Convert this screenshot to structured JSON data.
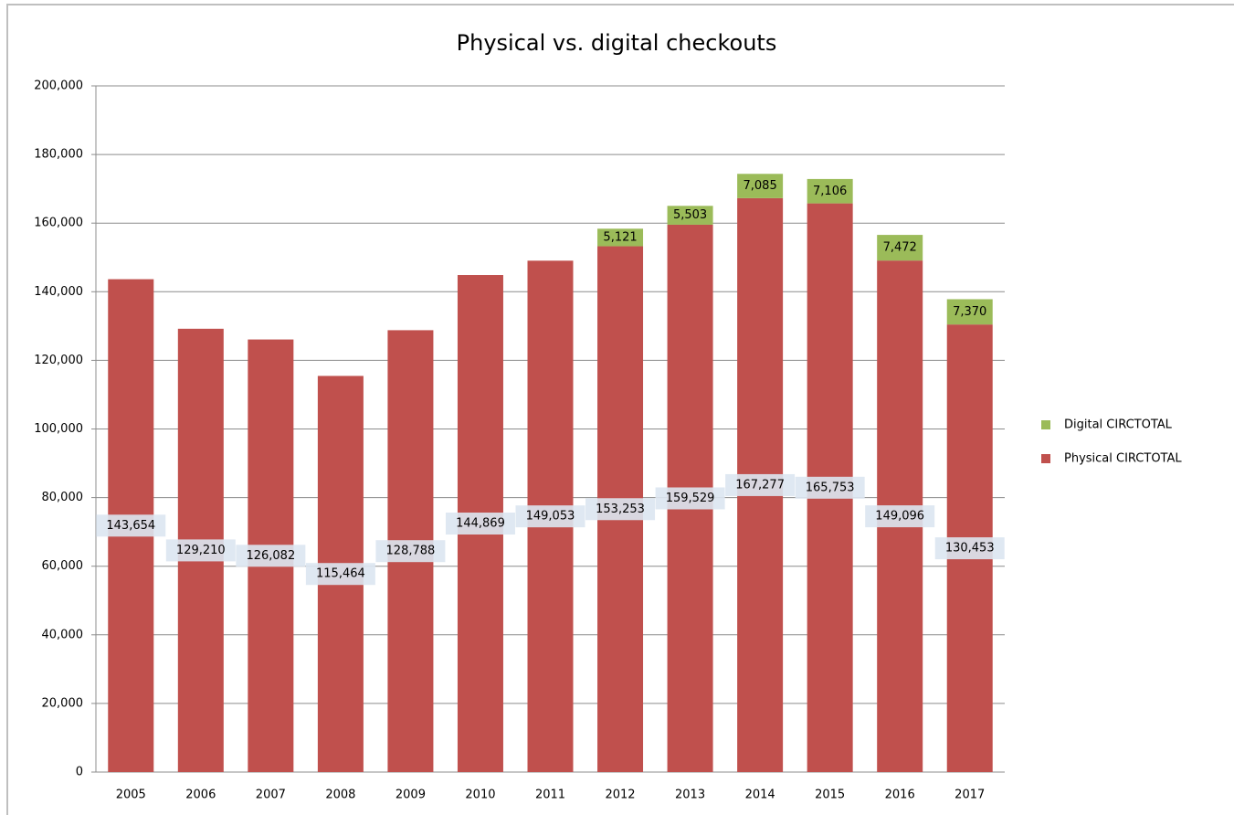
{
  "chart_data": {
    "type": "stacked_bar",
    "title": "Physical vs. digital checkouts",
    "categories": [
      "2005",
      "2006",
      "2007",
      "2008",
      "2009",
      "2010",
      "2011",
      "2012",
      "2013",
      "2014",
      "2015",
      "2016",
      "2017"
    ],
    "series": [
      {
        "name": "Physical CIRCTOTAL",
        "color": "#c0504d",
        "values": [
          143654,
          129210,
          126082,
          115464,
          128788,
          144869,
          149053,
          153253,
          159529,
          167277,
          165753,
          149096,
          130453
        ],
        "value_labels": [
          "143,654",
          "129,210",
          "126,082",
          "115,464",
          "128,788",
          "144,869",
          "149,053",
          "153,253",
          "159,529",
          "167,277",
          "165,753",
          "149,096",
          "130,453"
        ]
      },
      {
        "name": "Digital CIRCTOTAL",
        "color": "#9bbb59",
        "values": [
          null,
          null,
          null,
          null,
          null,
          null,
          null,
          5121,
          5503,
          7085,
          7106,
          7472,
          7370
        ],
        "value_labels": [
          null,
          null,
          null,
          null,
          null,
          null,
          null,
          "5,121",
          "5,503",
          "7,085",
          "7,106",
          "7,472",
          "7,370"
        ]
      }
    ],
    "ylim": [
      0,
      200000
    ],
    "yticks": [
      0,
      {
        "value": 20000,
        "label": "20,000"
      },
      {
        "value": 40000,
        "label": "40,000"
      },
      {
        "value": 60000,
        "label": "60,000"
      },
      {
        "value": 80000,
        "label": "80,000"
      },
      {
        "value": 100000,
        "label": "100,000"
      },
      {
        "value": 120000,
        "label": "120,000"
      },
      {
        "value": 140000,
        "label": "140,000"
      },
      {
        "value": 160000,
        "label": "160,000"
      },
      {
        "value": 180000,
        "label": "180,000"
      },
      {
        "value": 200000,
        "label": "200,000"
      }
    ],
    "grid": true,
    "legend": "right"
  }
}
